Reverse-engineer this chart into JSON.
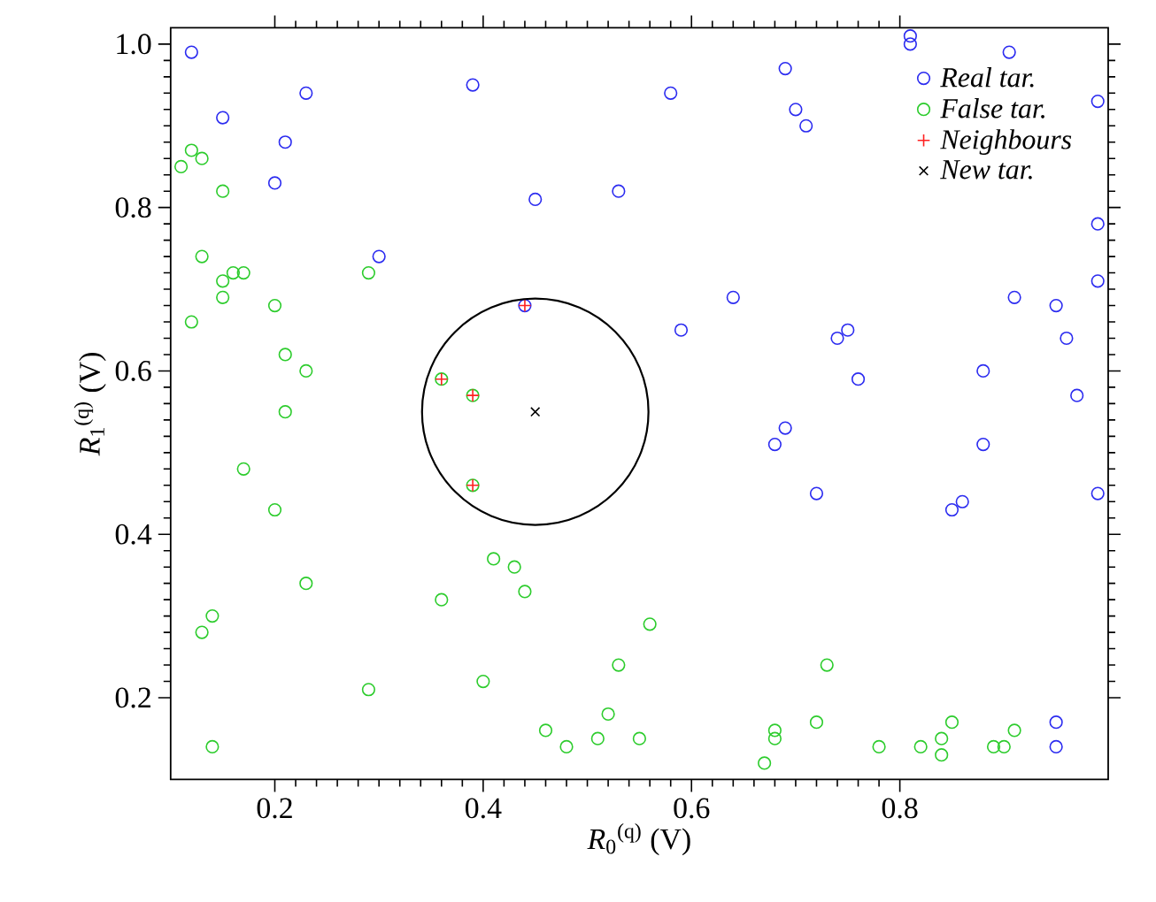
{
  "chart_data": {
    "type": "scatter",
    "xlabel": "*R*$_{0}$$^{(q)}$ (V)",
    "ylabel": "*R*$_{1}$$^{(q)}$ (V)",
    "xlim": [
      0.1,
      1.0
    ],
    "ylim": [
      0.1,
      1.02
    ],
    "xticks": [
      0.2,
      0.4,
      0.6,
      0.8
    ],
    "yticks": [
      0.2,
      0.4,
      0.6,
      0.8,
      {
        "value": 1.0,
        "label": "1.0"
      }
    ],
    "legend": "top right",
    "series": [
      {
        "name": "Real tar.",
        "color": "#2b2bf0",
        "marker": "circle",
        "x": [
          0.12,
          0.23,
          0.15,
          0.21,
          0.2,
          0.39,
          0.45,
          0.53,
          0.3,
          0.44,
          0.58,
          0.69,
          0.7,
          0.71,
          0.81,
          0.81,
          0.905,
          0.99,
          0.99,
          0.99,
          0.59,
          0.74,
          0.75,
          0.76,
          0.88,
          0.64,
          0.91,
          0.95,
          0.96,
          0.97,
          0.69,
          0.68,
          0.88,
          0.72,
          0.85,
          0.86,
          0.99,
          0.95,
          0.95
        ],
        "values": [
          0.99,
          0.94,
          0.91,
          0.88,
          0.83,
          0.95,
          0.81,
          0.82,
          0.74,
          0.68,
          0.94,
          0.97,
          0.92,
          0.9,
          1.01,
          1.0,
          0.99,
          0.93,
          0.78,
          0.71,
          0.65,
          0.64,
          0.65,
          0.59,
          0.6,
          0.69,
          0.69,
          0.68,
          0.64,
          0.57,
          0.53,
          0.51,
          0.51,
          0.45,
          0.43,
          0.44,
          0.45,
          0.17,
          0.14
        ]
      },
      {
        "name": "False tar.",
        "color": "#2ccc2c",
        "marker": "circle",
        "x": [
          0.12,
          0.13,
          0.11,
          0.15,
          0.13,
          0.16,
          0.17,
          0.15,
          0.15,
          0.29,
          0.2,
          0.12,
          0.21,
          0.23,
          0.21,
          0.36,
          0.39,
          0.17,
          0.2,
          0.39,
          0.41,
          0.43,
          0.44,
          0.36,
          0.23,
          0.14,
          0.13,
          0.56,
          0.53,
          0.29,
          0.4,
          0.46,
          0.48,
          0.51,
          0.52,
          0.55,
          0.14,
          0.73,
          0.68,
          0.68,
          0.67,
          0.72,
          0.78,
          0.82,
          0.84,
          0.84,
          0.85,
          0.89,
          0.9,
          0.91
        ],
        "values": [
          0.87,
          0.86,
          0.85,
          0.82,
          0.74,
          0.72,
          0.72,
          0.71,
          0.69,
          0.72,
          0.68,
          0.66,
          0.62,
          0.6,
          0.55,
          0.59,
          0.57,
          0.48,
          0.43,
          0.46,
          0.37,
          0.36,
          0.33,
          0.32,
          0.34,
          0.3,
          0.28,
          0.29,
          0.24,
          0.21,
          0.22,
          0.16,
          0.14,
          0.15,
          0.18,
          0.15,
          0.14,
          0.24,
          0.16,
          0.15,
          0.12,
          0.17,
          0.14,
          0.14,
          0.15,
          0.13,
          0.17,
          0.14,
          0.14,
          0.16
        ]
      },
      {
        "name": "Neighbours",
        "color": "#ff2020",
        "marker": "plus",
        "x": [
          0.44,
          0.36,
          0.39,
          0.39
        ],
        "values": [
          0.68,
          0.59,
          0.57,
          0.46
        ]
      },
      {
        "name": "New tar.",
        "color": "#000000",
        "marker": "cross",
        "x": [
          0.45
        ],
        "values": [
          0.55
        ]
      }
    ]
  }
}
